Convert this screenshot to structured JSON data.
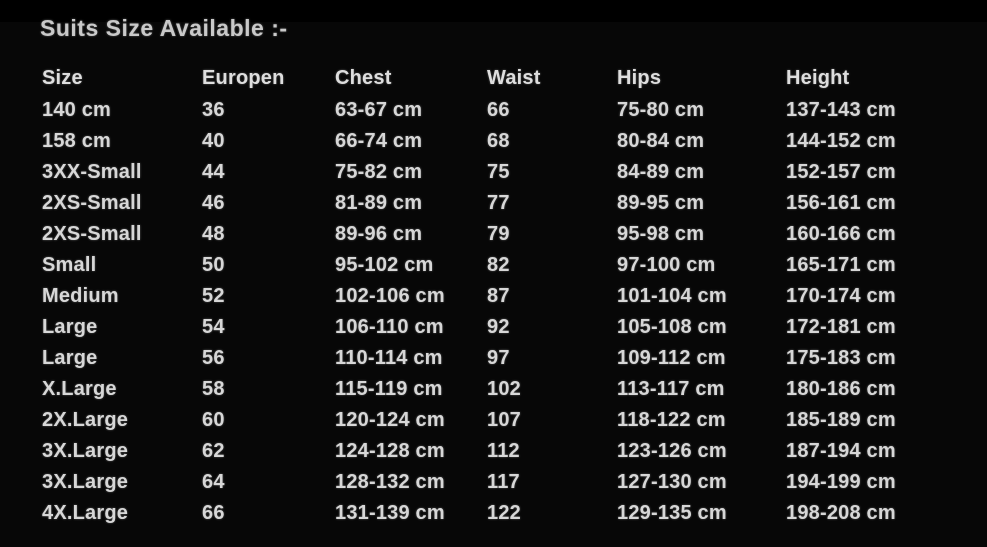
{
  "title": "Suits Size Available :-",
  "table": {
    "columns": [
      "Size",
      "Europen",
      "Chest",
      "Waist",
      "Hips",
      "Height"
    ],
    "rows": [
      [
        "140 cm",
        "36",
        "63-67 cm",
        "66",
        "75-80 cm",
        "137-143 cm"
      ],
      [
        "158 cm",
        "40",
        "66-74 cm",
        "68",
        "80-84 cm",
        "144-152 cm"
      ],
      [
        "3XX-Small",
        "44",
        "75-82 cm",
        "75",
        "84-89 cm",
        "152-157 cm"
      ],
      [
        "2XS-Small",
        "46",
        "81-89 cm",
        "77",
        "89-95 cm",
        "156-161 cm"
      ],
      [
        "2XS-Small",
        "48",
        "89-96 cm",
        "79",
        "95-98 cm",
        "160-166 cm"
      ],
      [
        "Small",
        "50",
        "95-102 cm",
        "82",
        "97-100 cm",
        "165-171 cm"
      ],
      [
        "Medium",
        "52",
        "102-106 cm",
        "87",
        "101-104 cm",
        "170-174 cm"
      ],
      [
        "Large",
        "54",
        "106-110 cm",
        "92",
        "105-108 cm",
        "172-181 cm"
      ],
      [
        "Large",
        "56",
        "110-114 cm",
        "97",
        "109-112 cm",
        "175-183 cm"
      ],
      [
        "X.Large",
        "58",
        "115-119 cm",
        "102",
        "113-117 cm",
        "180-186 cm"
      ],
      [
        "2X.Large",
        "60",
        "120-124 cm",
        "107",
        "118-122 cm",
        "185-189 cm"
      ],
      [
        "3X.Large",
        "62",
        "124-128 cm",
        "112",
        "123-126 cm",
        "187-194 cm"
      ],
      [
        "3X.Large",
        "64",
        "128-132 cm",
        "117",
        "127-130 cm",
        "194-199 cm"
      ],
      [
        "4X.Large",
        "66",
        "131-139 cm",
        "122",
        "129-135 cm",
        "198-208 cm"
      ]
    ]
  },
  "colors": {
    "background": "#070707",
    "top_band": "#000000",
    "text": "#d7d7d7",
    "title_text": "#c9c9c9"
  }
}
